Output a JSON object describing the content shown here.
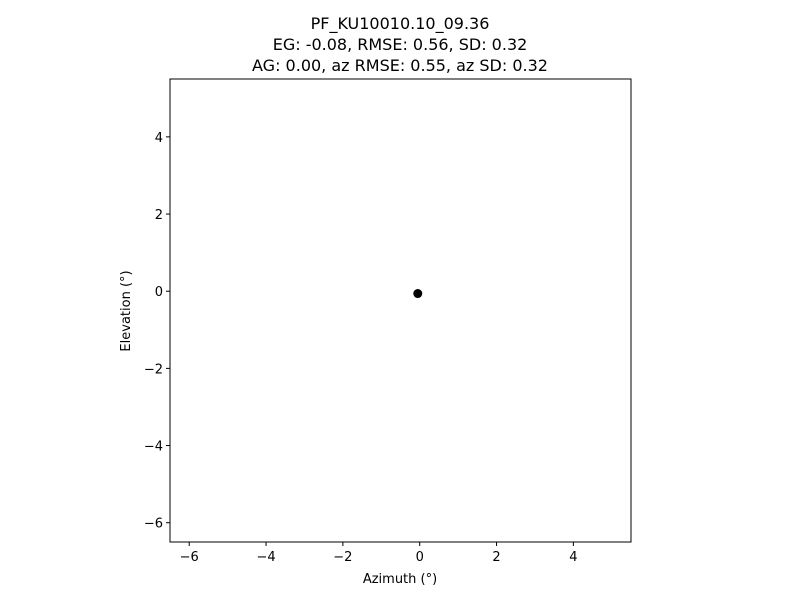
{
  "chart_data": {
    "type": "scatter",
    "title_lines": [
      "PF_KU10010.10_09.36",
      "EG: -0.08, RMSE: 0.56, SD: 0.32",
      "AG: 0.00, az RMSE: 0.55, az SD: 0.32"
    ],
    "xlabel": "Azimuth (°)",
    "ylabel": "Elevation (°)",
    "xlim": [
      -6.5,
      5.5
    ],
    "ylim": [
      -6.5,
      5.5
    ],
    "xticks": [
      -6,
      -4,
      -2,
      0,
      2,
      4
    ],
    "yticks": [
      -6,
      -4,
      -2,
      0,
      2,
      4
    ],
    "xtick_labels": [
      "−6",
      "−4",
      "−2",
      "0",
      "2",
      "4"
    ],
    "ytick_labels": [
      "−6",
      "−4",
      "−2",
      "0",
      "2",
      "4"
    ],
    "grid": false,
    "points": [
      {
        "x": -0.05,
        "y": -0.06
      }
    ],
    "marker_color": "#000000"
  }
}
